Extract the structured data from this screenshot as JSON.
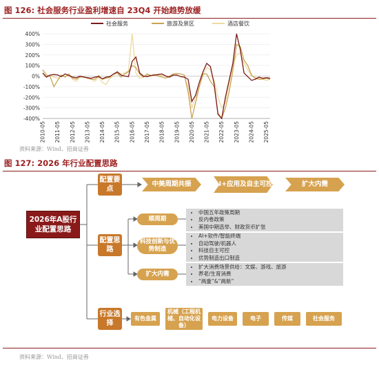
{
  "fig1": {
    "title_num": "图 126:",
    "title_text": "社会服务行业盈利增速自 23Q4 开始趋势放缓",
    "source": "资料来源：Wind、招商证券"
  },
  "chart_data": {
    "type": "line",
    "title": "社会服务行业盈利增速自 23Q4 开始趋势放缓",
    "y_ticks": [
      "400%",
      "300%",
      "200%",
      "100%",
      "0%",
      "-100%",
      "-200%",
      "-300%",
      "-400%"
    ],
    "ylim": [
      -400,
      400
    ],
    "x_ticks": [
      "2010-05",
      "2011-05",
      "2012-05",
      "2013-05",
      "2014-05",
      "2015-05",
      "2016-05",
      "2017-05",
      "2018-05",
      "2019-05",
      "2020-05",
      "2021-05",
      "2022-05",
      "2023-05",
      "2024-05",
      "2025-05"
    ],
    "x": [
      "2010-05",
      "2010-08",
      "2010-11",
      "2011-02",
      "2011-05",
      "2011-08",
      "2011-11",
      "2012-02",
      "2012-05",
      "2012-08",
      "2012-11",
      "2013-02",
      "2013-05",
      "2013-08",
      "2013-11",
      "2014-02",
      "2014-05",
      "2014-08",
      "2014-11",
      "2015-02",
      "2015-05",
      "2015-08",
      "2015-11",
      "2016-02",
      "2016-05",
      "2016-08",
      "2016-11",
      "2017-02",
      "2017-05",
      "2017-08",
      "2017-11",
      "2018-02",
      "2018-05",
      "2018-08",
      "2018-11",
      "2019-02",
      "2019-05",
      "2019-08",
      "2019-11",
      "2020-02",
      "2020-05",
      "2020-08",
      "2020-11",
      "2021-02",
      "2021-05",
      "2021-08",
      "2021-11",
      "2022-02",
      "2022-05",
      "2022-08",
      "2022-11",
      "2023-02",
      "2023-05",
      "2023-08",
      "2023-11",
      "2024-02",
      "2024-05",
      "2024-08",
      "2024-11",
      "2025-02",
      "2025-05",
      "2025-08"
    ],
    "legend_position": "top",
    "series": [
      {
        "name": "社会服务",
        "color": "#7a1a1a",
        "values": [
          30,
          -10,
          10,
          15,
          12,
          -5,
          20,
          5,
          -10,
          -15,
          0,
          -10,
          -15,
          -20,
          -10,
          -5,
          -25,
          -10,
          -5,
          20,
          40,
          10,
          0,
          -5,
          140,
          180,
          30,
          0,
          -5,
          5,
          10,
          15,
          20,
          0,
          -10,
          10,
          10,
          -5,
          -10,
          -30,
          -240,
          -180,
          -60,
          40,
          120,
          90,
          -80,
          -360,
          -400,
          -200,
          -40,
          120,
          400,
          250,
          30,
          -5,
          -40,
          -30,
          -10,
          -20,
          -15,
          -20
        ]
      },
      {
        "name": "旅游及景区",
        "color": "#c9a350",
        "values": [
          60,
          10,
          -5,
          -100,
          -40,
          10,
          -10,
          20,
          -20,
          -30,
          -10,
          -5,
          -20,
          -30,
          -30,
          5,
          -30,
          -20,
          -10,
          20,
          30,
          -10,
          20,
          40,
          100,
          80,
          20,
          -10,
          20,
          5,
          15,
          0,
          -10,
          -20,
          0,
          20,
          25,
          20,
          10,
          -150,
          -400,
          -250,
          -100,
          20,
          20,
          -50,
          -100,
          -350,
          -400,
          -300,
          -150,
          50,
          300,
          280,
          150,
          100,
          10,
          -20,
          -30,
          -30,
          -20,
          -30
        ]
      },
      {
        "name": "酒店餐饮",
        "color": "#eed9a0",
        "values": [
          20,
          0,
          10,
          -10,
          -20,
          0,
          -5,
          10,
          -30,
          -50,
          0,
          -10,
          -20,
          -30,
          -50,
          -10,
          -60,
          -80,
          -20,
          0,
          40,
          20,
          30,
          50,
          400,
          30,
          -20,
          -10,
          10,
          0,
          5,
          10,
          5,
          0,
          0,
          10,
          5,
          0,
          -10,
          -100,
          -300,
          -200,
          -100,
          10,
          80,
          60,
          -40,
          -200,
          -300,
          -250,
          -80,
          100,
          200,
          220,
          120,
          60,
          0,
          -10,
          -20,
          -30,
          -40,
          -30
        ]
      }
    ]
  },
  "fig2": {
    "title_num": "图 127:",
    "title_text": "2026 年行业配置思路",
    "source": "资料来源：Wind、招商证券",
    "root": "2026年A股行业配置思路",
    "key_points_label": "配置要点",
    "key_points": [
      "中美周期共振",
      "AI+应用及自主可控",
      "扩大内需"
    ],
    "ideas_label": "配置思路",
    "ideas": [
      {
        "label": "顺周期",
        "bullets": [
          "中国五年政策周期",
          "反内卷政策",
          "美国中期选举、财政货币扩张"
        ]
      },
      {
        "label": "科技创新与优势制造",
        "bullets": [
          "AI+软件/智能终端",
          "自动驾驶/机器人",
          "科技自主可控",
          "优势制造出口制造"
        ]
      },
      {
        "label": "扩大内需",
        "bullets": [
          "扩大消费场景供给：文娱、游戏、旅游",
          "养老/生育消费",
          "“两重”&“两新”"
        ]
      }
    ],
    "industry_label": "行业选择",
    "industries": [
      "有色金属",
      "机械（工程机械、自动化设备）",
      "电力设备",
      "电子",
      "传媒",
      "社会服务"
    ]
  }
}
